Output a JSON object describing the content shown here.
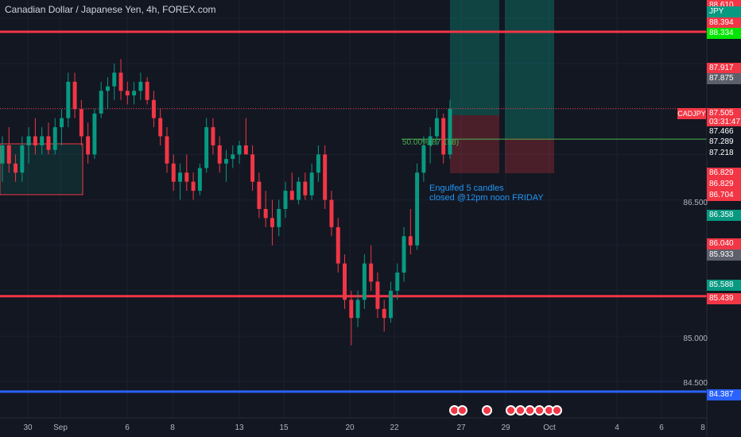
{
  "header": {
    "title": "Canadian Dollar / Japanese Yen, 4h, FOREX.com"
  },
  "symbol_tag": "CADJPY",
  "annotations": {
    "note_line1": "Engulfed 5 candles",
    "note_line2": "closed @12pm noon FRIDAY",
    "fib_label": "50.00%(87.168)"
  },
  "price_axis": [
    "86.500",
    "85.000",
    "84.500"
  ],
  "price_tags": [
    {
      "text": "88.610",
      "color": "#f23645"
    },
    {
      "text": "JPY",
      "color": "#089981"
    },
    {
      "text": "88.394",
      "color": "#f23645"
    },
    {
      "text": "88.334",
      "color": "#00e600"
    },
    {
      "text": "87.917",
      "color": "#f23645"
    },
    {
      "text": "87.875",
      "color": "#5d606b"
    },
    {
      "text": "87.505",
      "color": "#f23645"
    },
    {
      "text": "03:31:47",
      "color": "#f23645"
    },
    {
      "text": "87.466",
      "color": "#131722"
    },
    {
      "text": "87.289",
      "color": "#131722"
    },
    {
      "text": "87.218",
      "color": "#131722"
    },
    {
      "text": "86.829",
      "color": "#f23645"
    },
    {
      "text": "86.829",
      "color": "#f23645"
    },
    {
      "text": "86.704",
      "color": "#f23645"
    },
    {
      "text": "86.358",
      "color": "#089981"
    },
    {
      "text": "86.040",
      "color": "#f23645"
    },
    {
      "text": "85.933",
      "color": "#5d606b"
    },
    {
      "text": "85.588",
      "color": "#089981"
    },
    {
      "text": "85.439",
      "color": "#f23645"
    },
    {
      "text": "84.387",
      "color": "#2962ff"
    }
  ],
  "time_axis": [
    "30",
    "Sep",
    "6",
    "8",
    "13",
    "15",
    "20",
    "22",
    "27",
    "29",
    "Oct",
    "4",
    "6",
    "8"
  ],
  "colors": {
    "background": "#131722",
    "up": "#089981",
    "down": "#f23645",
    "support_line": "#f23645",
    "low_line": "#2962ff",
    "fib_line": "#4caf50"
  },
  "chart_data": {
    "type": "candlestick",
    "timeframe": "4h",
    "price_range": [
      84.1,
      88.7
    ],
    "horizontal_lines": [
      88.35,
      85.44,
      84.39
    ],
    "fib_level": 87.168,
    "last_price": 87.505,
    "candles": [
      {
        "o": 86.9,
        "h": 87.2,
        "l": 86.7,
        "c": 87.1
      },
      {
        "o": 87.1,
        "h": 87.3,
        "l": 86.8,
        "c": 86.9
      },
      {
        "o": 86.9,
        "h": 87.0,
        "l": 86.7,
        "c": 86.8
      },
      {
        "o": 86.8,
        "h": 87.2,
        "l": 86.7,
        "c": 87.1
      },
      {
        "o": 87.1,
        "h": 87.3,
        "l": 86.9,
        "c": 87.2
      },
      {
        "o": 87.2,
        "h": 87.4,
        "l": 87.0,
        "c": 87.1
      },
      {
        "o": 87.1,
        "h": 87.3,
        "l": 87.0,
        "c": 87.2
      },
      {
        "o": 87.2,
        "h": 87.35,
        "l": 87.0,
        "c": 87.05
      },
      {
        "o": 87.05,
        "h": 87.4,
        "l": 87.0,
        "c": 87.3
      },
      {
        "o": 87.3,
        "h": 87.5,
        "l": 87.1,
        "c": 87.4
      },
      {
        "o": 87.4,
        "h": 87.9,
        "l": 87.3,
        "c": 87.8
      },
      {
        "o": 87.8,
        "h": 87.9,
        "l": 87.4,
        "c": 87.5
      },
      {
        "o": 87.5,
        "h": 87.6,
        "l": 87.1,
        "c": 87.2
      },
      {
        "o": 87.2,
        "h": 87.35,
        "l": 86.9,
        "c": 87.0
      },
      {
        "o": 87.0,
        "h": 87.5,
        "l": 86.95,
        "c": 87.45
      },
      {
        "o": 87.45,
        "h": 87.8,
        "l": 87.4,
        "c": 87.7
      },
      {
        "o": 87.7,
        "h": 87.85,
        "l": 87.5,
        "c": 87.75
      },
      {
        "o": 87.75,
        "h": 88.0,
        "l": 87.6,
        "c": 87.9
      },
      {
        "o": 87.9,
        "h": 88.05,
        "l": 87.6,
        "c": 87.7
      },
      {
        "o": 87.7,
        "h": 87.8,
        "l": 87.55,
        "c": 87.65
      },
      {
        "o": 87.65,
        "h": 87.8,
        "l": 87.55,
        "c": 87.7
      },
      {
        "o": 87.7,
        "h": 87.9,
        "l": 87.6,
        "c": 87.8
      },
      {
        "o": 87.8,
        "h": 87.85,
        "l": 87.55,
        "c": 87.6
      },
      {
        "o": 87.6,
        "h": 87.7,
        "l": 87.3,
        "c": 87.4
      },
      {
        "o": 87.4,
        "h": 87.5,
        "l": 87.1,
        "c": 87.2
      },
      {
        "o": 87.2,
        "h": 87.3,
        "l": 86.8,
        "c": 86.9
      },
      {
        "o": 86.9,
        "h": 87.0,
        "l": 86.6,
        "c": 86.7
      },
      {
        "o": 86.7,
        "h": 86.9,
        "l": 86.5,
        "c": 86.8
      },
      {
        "o": 86.8,
        "h": 87.0,
        "l": 86.6,
        "c": 86.7
      },
      {
        "o": 86.7,
        "h": 86.8,
        "l": 86.5,
        "c": 86.6
      },
      {
        "o": 86.6,
        "h": 86.9,
        "l": 86.55,
        "c": 86.85
      },
      {
        "o": 86.85,
        "h": 87.4,
        "l": 86.8,
        "c": 87.3
      },
      {
        "o": 87.3,
        "h": 87.4,
        "l": 87.0,
        "c": 87.1
      },
      {
        "o": 87.1,
        "h": 87.2,
        "l": 86.8,
        "c": 86.9
      },
      {
        "o": 86.9,
        "h": 87.05,
        "l": 86.7,
        "c": 86.95
      },
      {
        "o": 86.95,
        "h": 87.1,
        "l": 86.85,
        "c": 87.0
      },
      {
        "o": 87.0,
        "h": 87.15,
        "l": 86.9,
        "c": 87.1
      },
      {
        "o": 87.1,
        "h": 87.4,
        "l": 87.0,
        "c": 87.0
      },
      {
        "o": 87.0,
        "h": 87.1,
        "l": 86.6,
        "c": 86.7
      },
      {
        "o": 86.7,
        "h": 86.8,
        "l": 86.3,
        "c": 86.4
      },
      {
        "o": 86.4,
        "h": 86.6,
        "l": 86.2,
        "c": 86.3
      },
      {
        "o": 86.3,
        "h": 86.5,
        "l": 86.0,
        "c": 86.2
      },
      {
        "o": 86.2,
        "h": 86.5,
        "l": 86.1,
        "c": 86.4
      },
      {
        "o": 86.4,
        "h": 86.7,
        "l": 86.3,
        "c": 86.6
      },
      {
        "o": 86.6,
        "h": 86.8,
        "l": 86.5,
        "c": 86.5
      },
      {
        "o": 86.5,
        "h": 86.75,
        "l": 86.45,
        "c": 86.7
      },
      {
        "o": 86.7,
        "h": 86.8,
        "l": 86.5,
        "c": 86.55
      },
      {
        "o": 86.55,
        "h": 86.9,
        "l": 86.5,
        "c": 86.8
      },
      {
        "o": 86.8,
        "h": 87.1,
        "l": 86.7,
        "c": 87.0
      },
      {
        "o": 87.0,
        "h": 87.1,
        "l": 86.4,
        "c": 86.5
      },
      {
        "o": 86.5,
        "h": 86.6,
        "l": 86.1,
        "c": 86.2
      },
      {
        "o": 86.2,
        "h": 86.3,
        "l": 85.7,
        "c": 85.8
      },
      {
        "o": 85.8,
        "h": 85.9,
        "l": 85.3,
        "c": 85.4
      },
      {
        "o": 85.4,
        "h": 85.5,
        "l": 84.9,
        "c": 85.2
      },
      {
        "o": 85.2,
        "h": 85.5,
        "l": 85.1,
        "c": 85.4
      },
      {
        "o": 85.4,
        "h": 85.9,
        "l": 85.3,
        "c": 85.8
      },
      {
        "o": 85.8,
        "h": 86.0,
        "l": 85.5,
        "c": 85.6
      },
      {
        "o": 85.6,
        "h": 85.7,
        "l": 85.2,
        "c": 85.3
      },
      {
        "o": 85.3,
        "h": 85.4,
        "l": 85.05,
        "c": 85.2
      },
      {
        "o": 85.2,
        "h": 85.6,
        "l": 85.15,
        "c": 85.5
      },
      {
        "o": 85.5,
        "h": 85.8,
        "l": 85.4,
        "c": 85.7
      },
      {
        "o": 85.7,
        "h": 86.2,
        "l": 85.6,
        "c": 86.1
      },
      {
        "o": 86.1,
        "h": 86.4,
        "l": 85.9,
        "c": 86.0
      },
      {
        "o": 86.0,
        "h": 86.9,
        "l": 85.95,
        "c": 86.8
      },
      {
        "o": 86.8,
        "h": 87.2,
        "l": 86.7,
        "c": 87.1
      },
      {
        "o": 87.1,
        "h": 87.3,
        "l": 86.9,
        "c": 87.2
      },
      {
        "o": 87.2,
        "h": 87.5,
        "l": 87.1,
        "c": 87.4
      },
      {
        "o": 87.4,
        "h": 87.45,
        "l": 86.9,
        "c": 87.0
      },
      {
        "o": 87.0,
        "h": 87.6,
        "l": 86.95,
        "c": 87.5
      }
    ]
  }
}
